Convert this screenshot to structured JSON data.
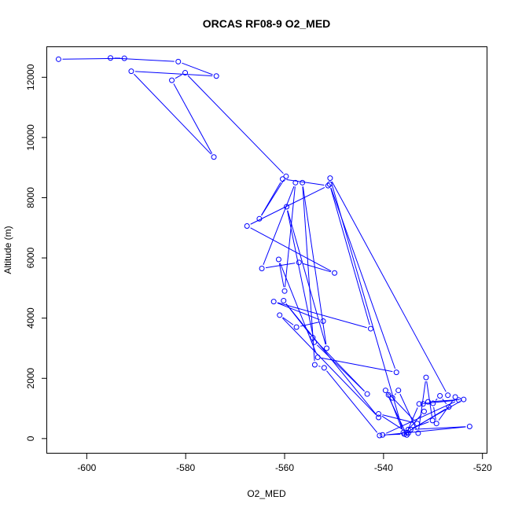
{
  "chart_data": {
    "type": "line",
    "title": "ORCAS RF08-9 O2_MED",
    "xlabel": "O2_MED",
    "ylabel": "Altitude (m)",
    "xlim": [
      -608,
      -519
    ],
    "ylim": [
      -500,
      13000
    ],
    "x_ticks": [
      -600,
      -580,
      -560,
      -540,
      -520
    ],
    "y_ticks": [
      0,
      2000,
      4000,
      6000,
      8000,
      10000,
      12000
    ],
    "line_color": "#0000ff",
    "marker": "open-circle",
    "series": [
      {
        "x": [
          -605.7,
          -592.4,
          -595.2,
          -581.5,
          -573.8,
          -591.0,
          -574.3,
          -582.8,
          -580.1,
          -559.7,
          -565.1,
          -560.4,
          -551.2,
          -567.6,
          -549.9,
          -557.1,
          -564.6,
          -557.8,
          -560.0,
          -561.2,
          -553.3,
          -537.4,
          -550.9,
          -542.6,
          -562.2,
          -552.2,
          -557.6,
          -561.0,
          -541.0,
          -560.2,
          -554.3,
          -543.3,
          -554.0,
          -559.6,
          -551.5,
          -556.4,
          -553.9,
          -552.0,
          -540.8,
          -522.6,
          -534.5,
          -523.8,
          -531.0,
          -532.0,
          -531.8,
          -535.8,
          -540.2,
          -524.8,
          -532.8,
          -535.3,
          -526.8,
          -528.6,
          -530.0,
          -529.3,
          -525.5,
          -527.0,
          -550.8,
          -536.0,
          -539.0,
          -538.2,
          -537.0,
          -533.0,
          -531.4,
          -530.1,
          -535.0,
          -535.3,
          -539.6,
          -533.2,
          -541.0,
          -535.0
        ],
        "y": [
          12600,
          12630,
          12640,
          12520,
          12040,
          12200,
          9350,
          11900,
          12150,
          8710,
          7300,
          8620,
          8400,
          7060,
          5500,
          5850,
          5650,
          8500,
          4900,
          5950,
          2700,
          2200,
          8450,
          3650,
          4550,
          3900,
          3700,
          4100,
          700,
          4580,
          3350,
          1480,
          3200,
          7700,
          3000,
          8500,
          2450,
          2350,
          100,
          400,
          300,
          1300,
          1220,
          1150,
          900,
          150,
          120,
          1280,
          1150,
          200,
          1050,
          1420,
          1170,
          500,
          1380,
          1440,
          8650,
          200,
          1450,
          1350,
          1600,
          180,
          2030,
          600,
          300,
          120,
          1600,
          500,
          820,
          180
        ]
      }
    ],
    "grid": false,
    "legend": "none"
  }
}
